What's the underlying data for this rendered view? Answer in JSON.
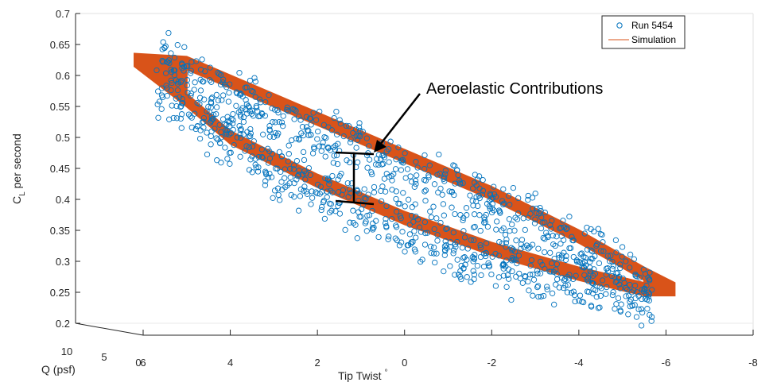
{
  "chart_data": {
    "type": "scatter",
    "projection": "3d",
    "xlabel": "Tip Twist",
    "xlabel_suffix": "°",
    "ylabel": "C",
    "ylabel_subscript": "L",
    "ylabel_rest": "per second",
    "zlabel": "Q (psf)",
    "y_ticks": [
      "0.2",
      "0.25",
      "0.3",
      "0.35",
      "0.4",
      "0.45",
      "0.5",
      "0.55",
      "0.6",
      "0.65",
      "0.7"
    ],
    "x_ticks": [
      "6",
      "4",
      "2",
      "0",
      "-2",
      "-4",
      "-6",
      "-8"
    ],
    "q_ticks": [
      "10",
      "5",
      "0"
    ],
    "xlim": [
      -8,
      6
    ],
    "ylim": [
      0.2,
      0.7
    ],
    "grid": false,
    "legend_position": "top-right",
    "series": [
      {
        "name": "Run 5454",
        "kind": "scatter",
        "marker": "circle",
        "color": "#0072BD",
        "loop": {
          "upper": [
            [
              5.5,
              0.62
            ],
            [
              4.5,
              0.58
            ],
            [
              3.0,
              0.53
            ],
            [
              1.5,
              0.49
            ],
            [
              0.0,
              0.44
            ],
            [
              -1.5,
              0.4
            ],
            [
              -3.0,
              0.36
            ],
            [
              -4.5,
              0.3
            ],
            [
              -5.5,
              0.26
            ]
          ],
          "lower": [
            [
              5.5,
              0.58
            ],
            [
              4.5,
              0.52
            ],
            [
              3.0,
              0.45
            ],
            [
              1.5,
              0.4
            ],
            [
              0.0,
              0.35
            ],
            [
              -1.5,
              0.31
            ],
            [
              -3.0,
              0.28
            ],
            [
              -4.5,
              0.26
            ],
            [
              -5.5,
              0.24
            ]
          ]
        }
      },
      {
        "name": "Simulation",
        "kind": "line",
        "color": "#D95319",
        "loop": {
          "upper": [
            [
              6.2,
              0.625
            ],
            [
              5.0,
              0.62
            ],
            [
              4.0,
              0.59
            ],
            [
              2.0,
              0.53
            ],
            [
              0.0,
              0.47
            ],
            [
              -2.0,
              0.41
            ],
            [
              -4.0,
              0.34
            ],
            [
              -5.5,
              0.28
            ],
            [
              -6.2,
              0.255
            ]
          ],
          "lower": [
            [
              6.2,
              0.625
            ],
            [
              5.0,
              0.56
            ],
            [
              4.0,
              0.5
            ],
            [
              2.0,
              0.43
            ],
            [
              0.0,
              0.37
            ],
            [
              -2.0,
              0.32
            ],
            [
              -4.0,
              0.28
            ],
            [
              -5.5,
              0.255
            ],
            [
              -6.2,
              0.255
            ]
          ]
        }
      }
    ],
    "annotations": [
      {
        "text": "Aeroelastic Contributions",
        "points_to": [
          0.5,
          0.46
        ]
      }
    ]
  }
}
